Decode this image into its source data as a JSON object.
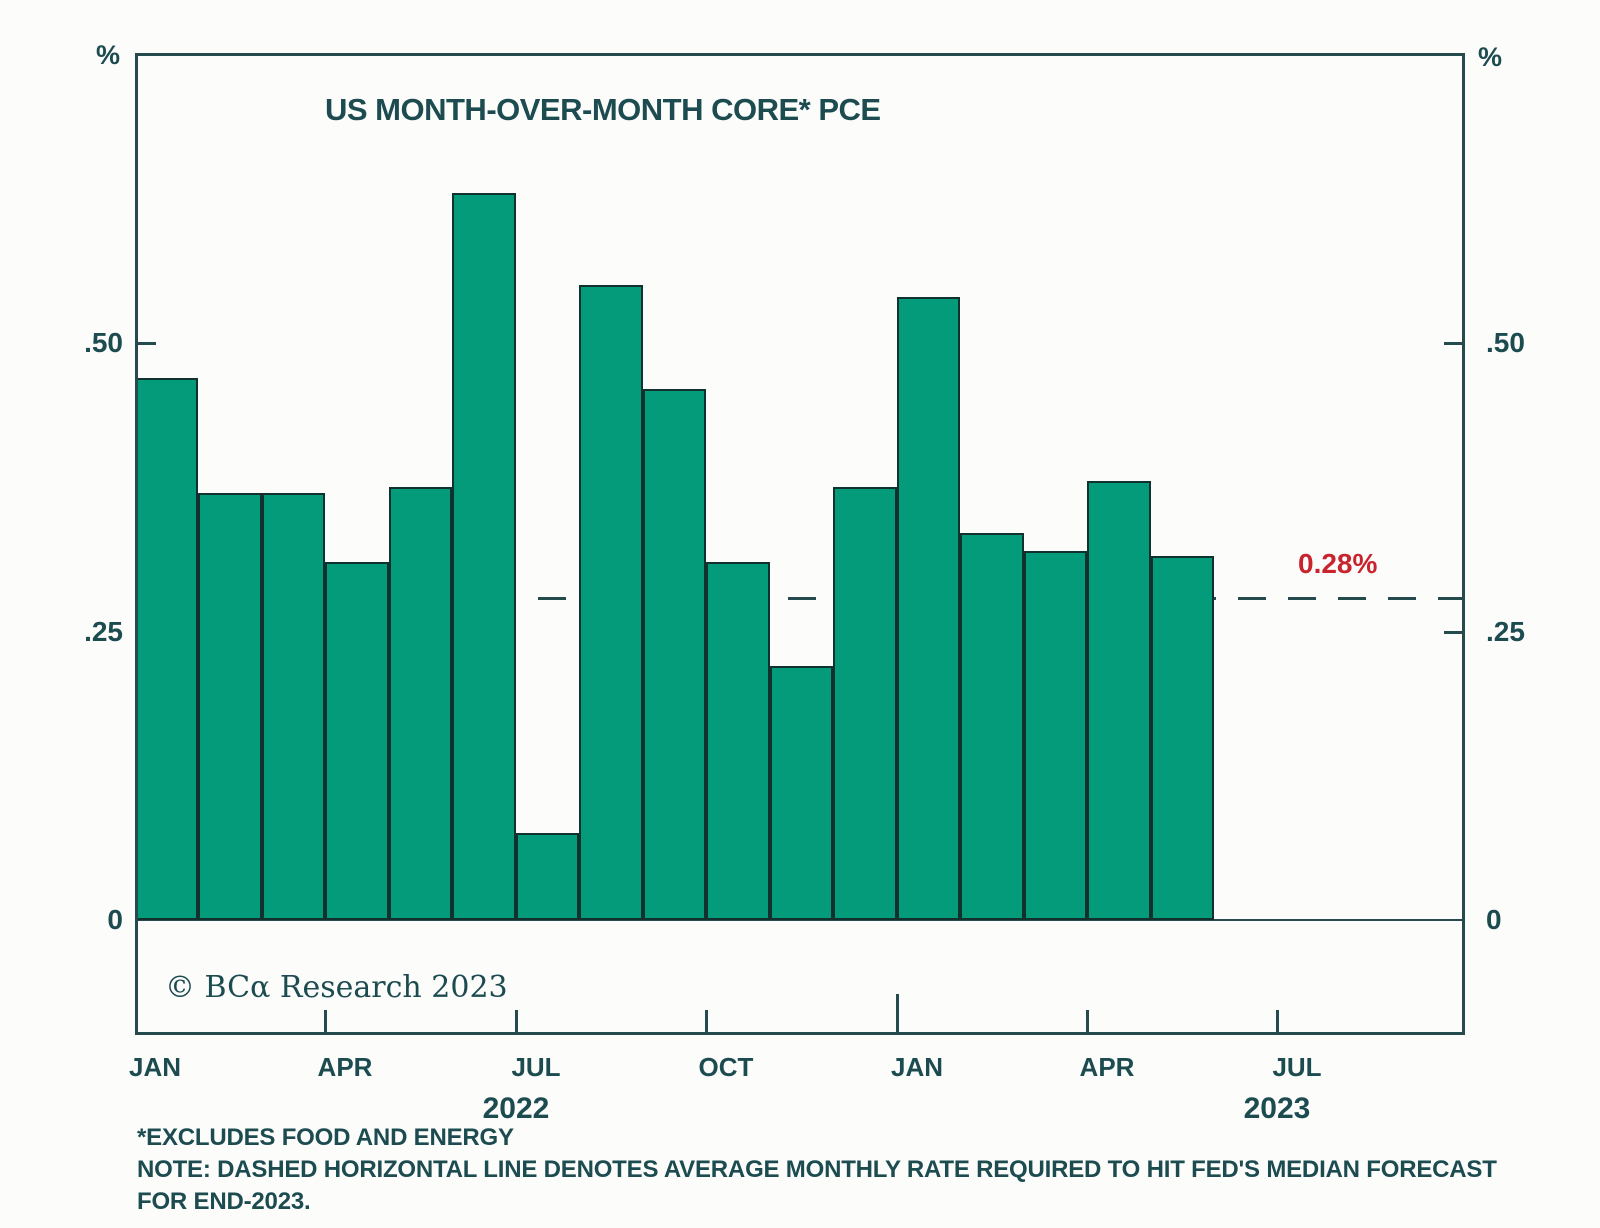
{
  "chart_data": {
    "type": "bar",
    "title": "US MONTH-OVER-MONTH CORE* PCE",
    "axis_unit_left": "%",
    "axis_unit_right": "%",
    "categories": [
      "JAN 2022",
      "FEB 2022",
      "MAR 2022",
      "APR 2022",
      "MAY 2022",
      "JUN 2022",
      "JUL 2022",
      "AUG 2022",
      "SEP 2022",
      "OCT 2022",
      "NOV 2022",
      "DEC 2022",
      "JAN 2023",
      "FEB 2023",
      "MAR 2023",
      "APR 2023",
      "MAY 2023"
    ],
    "values": [
      0.47,
      0.37,
      0.37,
      0.31,
      0.375,
      0.63,
      0.075,
      0.55,
      0.46,
      0.31,
      0.22,
      0.375,
      0.54,
      0.335,
      0.32,
      0.38,
      0.315
    ],
    "ylim": [
      -0.1,
      0.75
    ],
    "yticks": [
      {
        "value": 0,
        "label": "0"
      },
      {
        "value": 0.25,
        "label": ".25"
      },
      {
        "value": 0.5,
        "label": ".50"
      }
    ],
    "x_axis": {
      "ticks": [
        {
          "index": 3
        },
        {
          "index": 6
        },
        {
          "index": 9
        },
        {
          "index": 12,
          "major": true
        },
        {
          "index": 15
        },
        {
          "index": 18
        }
      ],
      "months": [
        {
          "label": "JAN",
          "index": 0
        },
        {
          "label": "APR",
          "index": 3
        },
        {
          "label": "JUL",
          "index": 6
        },
        {
          "label": "OCT",
          "index": 9
        },
        {
          "label": "JAN",
          "index": 12
        },
        {
          "label": "APR",
          "index": 15
        },
        {
          "label": "JUL",
          "index": 18
        }
      ],
      "years": [
        {
          "label": "2022",
          "index": 6
        },
        {
          "label": "2023",
          "index": 18
        }
      ]
    },
    "reference_line": {
      "value": 0.28,
      "label": "0.28%"
    },
    "colors": {
      "background": "#fcfcfb",
      "ink": "#1c4b50",
      "line": "#264b4e",
      "bar_fill": "#049b7b",
      "bar_stroke": "#10312d",
      "accent_red": "#c9242d"
    },
    "legend": null,
    "grid": false
  },
  "branding": {
    "copyright": "© BCα Research 2023"
  },
  "footnotes": [
    "*EXCLUDES FOOD AND ENERGY",
    "NOTE: DASHED HORIZONTAL LINE DENOTES AVERAGE MONTHLY RATE REQUIRED TO HIT FED'S MEDIAN FORECAST",
    "FOR END-2023."
  ]
}
